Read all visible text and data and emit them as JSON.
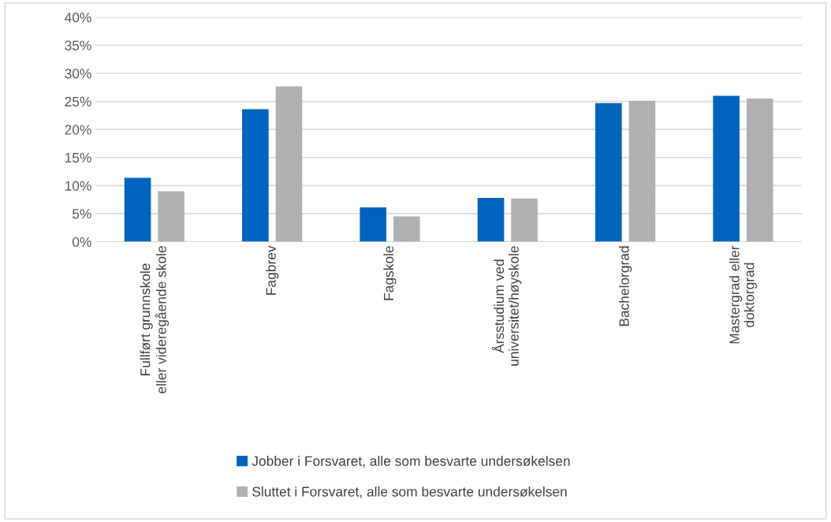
{
  "chart_data": {
    "type": "bar",
    "categories": [
      "Fullført grunnskole eller videregående skole",
      "Fagbrev",
      "Fagskole",
      "Årsstudium ved universitet/høyskole",
      "Bachelorgrad",
      "Mastergrad eller doktorgrad"
    ],
    "series": [
      {
        "name": "Jobber i Forsvaret, alle som besvarte undersøkelsen",
        "color": "#0063bd",
        "values": [
          11.4,
          23.6,
          6.1,
          7.8,
          24.7,
          26.0
        ]
      },
      {
        "name": "Sluttet i Forsvaret, alle som besvarte undersøkelsen",
        "color": "#b0b0b0",
        "values": [
          9.0,
          27.7,
          4.5,
          7.7,
          25.1,
          25.5
        ]
      }
    ],
    "ylim": [
      0,
      40
    ],
    "yticks": [
      {
        "value": 0,
        "label": "0%"
      },
      {
        "value": 5,
        "label": "5%"
      },
      {
        "value": 10,
        "label": "10%"
      },
      {
        "value": 15,
        "label": "15%"
      },
      {
        "value": 20,
        "label": "20%"
      },
      {
        "value": 25,
        "label": "25%"
      },
      {
        "value": 30,
        "label": "30%"
      },
      {
        "value": 35,
        "label": "35%"
      },
      {
        "value": 40,
        "label": "40%"
      }
    ],
    "grid": "y",
    "legend": "bottom"
  }
}
